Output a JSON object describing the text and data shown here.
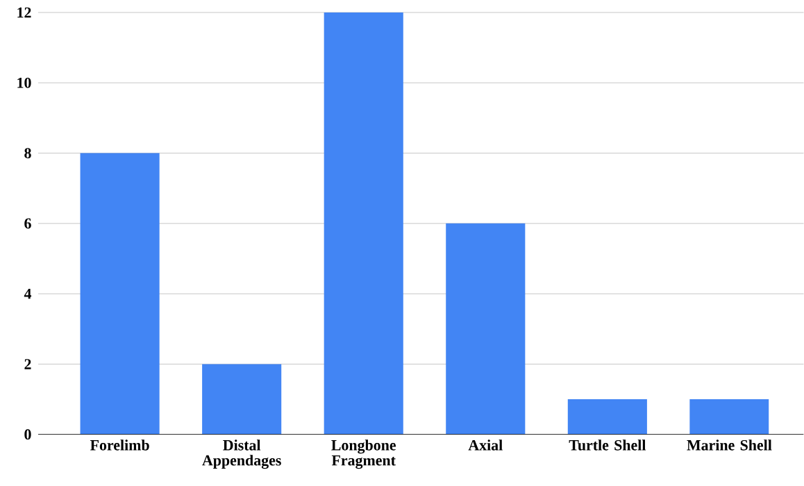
{
  "chart_data": {
    "type": "bar",
    "categories": [
      "Forelimb",
      "Distal Appendages",
      "Longbone Fragment",
      "Axial",
      "Turtle Shell",
      "Marine Shell"
    ],
    "values": [
      8,
      2,
      12,
      6,
      1,
      1
    ],
    "color": "#4285f4",
    "ylim": [
      0,
      12
    ],
    "yticks": [
      0,
      2,
      4,
      6,
      8,
      10,
      12
    ],
    "grid": "y"
  }
}
